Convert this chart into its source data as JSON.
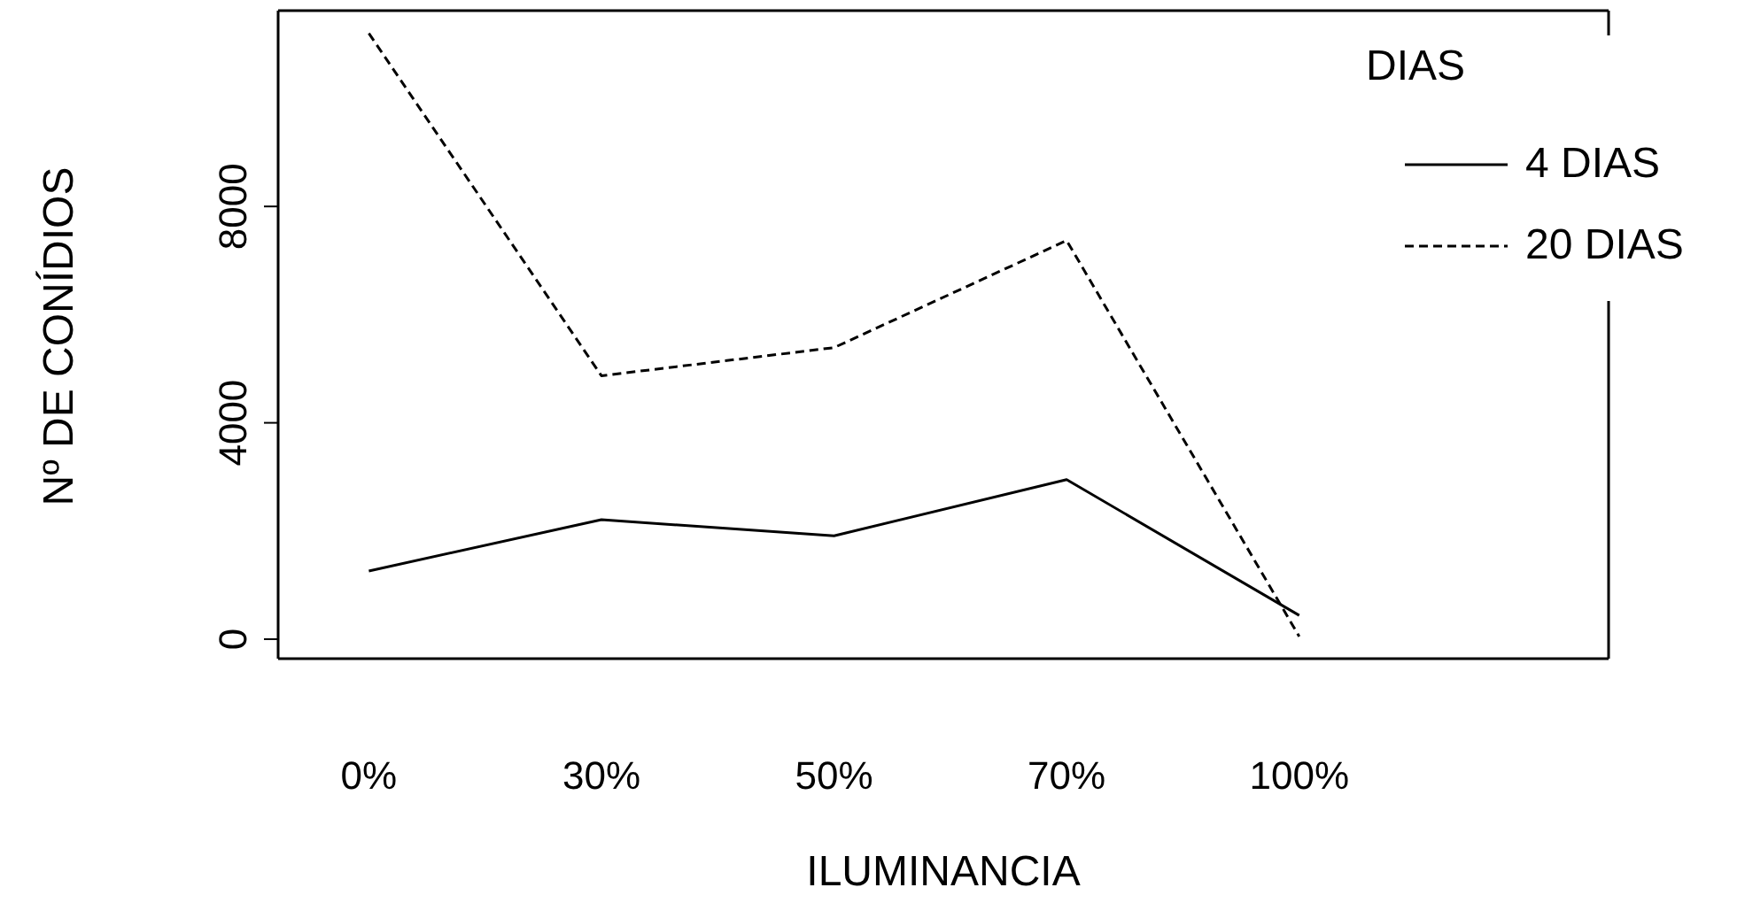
{
  "chart_data": {
    "type": "line",
    "xlabel": "ILUMINANCIA",
    "ylabel": "Nº DE  CONÍDIOS",
    "legend_title": "DIAS",
    "categories": [
      "0%",
      "30%",
      "50%",
      "70%",
      "100%"
    ],
    "series": [
      {
        "name": "4 DIAS",
        "color": "#000000",
        "line_style": "solid",
        "values": [
          1260,
          2210,
          1910,
          2950,
          440
        ]
      },
      {
        "name": "20 DIAS",
        "color": "#000000",
        "line_style": "dashed",
        "values": [
          11200,
          4870,
          5390,
          7370,
          50
        ]
      }
    ],
    "ylim": [
      -360,
      11620
    ],
    "yticks": [
      0,
      4000,
      8000
    ],
    "grid": false,
    "legend": "top right",
    "marker": "none"
  }
}
